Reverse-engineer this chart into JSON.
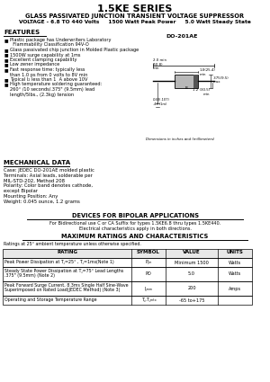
{
  "title": "1.5KE SERIES",
  "subtitle1": "GLASS PASSIVATED JUNCTION TRANSIENT VOLTAGE SUPPRESSOR",
  "subtitle2": "VOLTAGE - 6.8 TO 440 Volts     1500 Watt Peak Power     5.0 Watt Steady State",
  "features_title": "FEATURES",
  "features": [
    "Plastic package has Underwriters Laboratory",
    "  Flammability Classification 94V-O",
    "Glass passivated chip junction in Molded Plastic package",
    "1500W surge capability at 1ms",
    "Excellent clamping capability",
    "Low zener impedance",
    "Fast response time: typically less",
    "than 1.0 ps from 0 volts to 8V min",
    "Typical I₂ less than 1  A above 10V",
    "High temperature soldering guaranteed:",
    "260° /10 seconds/.375\" (9.5mm) lead",
    "length/5lbs., (2.3kg) tension"
  ],
  "features_bullets": [
    0,
    2,
    3,
    4,
    5,
    6,
    8,
    9
  ],
  "mech_title": "MECHANICAL DATA",
  "mech_lines": [
    "Case: JEDEC DO-201AE molded plastic",
    "Terminals: Axial leads, solderable per",
    "MIL-STD-202, Method 208",
    "Polarity: Color band denotes cathode,",
    "except Bipolar",
    "Mounting Position: Any",
    "Weight: 0.045 ounce, 1.2 grams"
  ],
  "bipolar_title": "DEVICES FOR BIPOLAR APPLICATIONS",
  "bipolar_line1": "For Bidirectional use C or CA Suffix for types 1.5KE6.8 thru types 1.5KE440.",
  "bipolar_line2": "Electrical characteristics apply in both directions.",
  "table_title": "MAXIMUM RATINGS AND CHARACTERISTICS",
  "table_note": "Ratings at 25° ambient temperature unless otherwise specified.",
  "table_headers": [
    "RATING",
    "SYMBOL",
    "VALUE",
    "UNITS"
  ],
  "table_rows": [
    [
      "Peak Power Dissipation at T⁁=25° , T⁁=1ms(Note 1)",
      "P⁁ₘ",
      "Minimum 1500",
      "Watts"
    ],
    [
      "Steady State Power Dissipation at T⁁=75° Lead Lengths\n.375\" (9.5mm) (Note 2)",
      "PD",
      "5.0",
      "Watts"
    ],
    [
      "Peak Forward Surge Current, 8.3ms Single Half Sine-Wave\nSuperimposed on Rated Load(JEDEC Method) (Note 3)",
      "I⁁ₘₘ",
      "200",
      "Amps"
    ],
    [
      "Operating and Storage Temperature Range",
      "T⁁,T⁁ₘₜₒ",
      "-65 to+175",
      ""
    ]
  ],
  "do201ae_label": "DO-201AE",
  "dim_note": "Dimensions in inches and (millimeters)",
  "bg_color": "#ffffff"
}
